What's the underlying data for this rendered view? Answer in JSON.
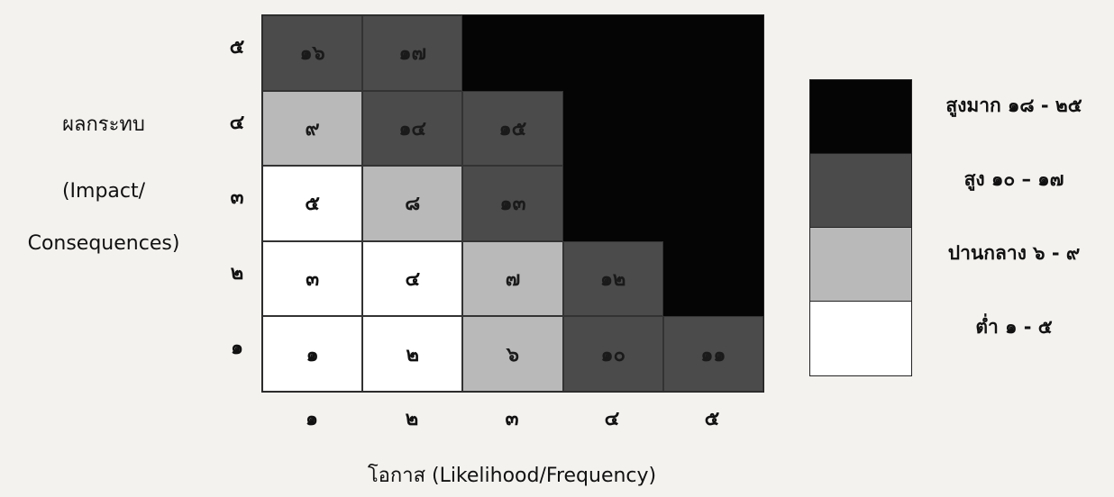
{
  "chart_data": {
    "type": "heatmap",
    "ylabel_lines": [
      "ผลกระทบ",
      "(Impact/",
      "Consequences)"
    ],
    "xlabel": "โอกาส (Likelihood/Frequency)",
    "x_ticks": [
      "๑",
      "๒",
      "๓",
      "๔",
      "๕"
    ],
    "y_ticks": [
      "๕",
      "๔",
      "๓",
      "๒",
      "๑"
    ],
    "rows": [
      [
        {
          "label": "๑๖",
          "level": "high"
        },
        {
          "label": "๑๗",
          "level": "high"
        },
        {
          "label": "",
          "level": "very-high"
        },
        {
          "label": "",
          "level": "very-high"
        },
        {
          "label": "",
          "level": "very-high"
        }
      ],
      [
        {
          "label": "๙",
          "level": "medium"
        },
        {
          "label": "๑๔",
          "level": "high"
        },
        {
          "label": "๑๕",
          "level": "high"
        },
        {
          "label": "",
          "level": "very-high"
        },
        {
          "label": "",
          "level": "very-high"
        }
      ],
      [
        {
          "label": "๕",
          "level": "low"
        },
        {
          "label": "๘",
          "level": "medium"
        },
        {
          "label": "๑๓",
          "level": "high"
        },
        {
          "label": "",
          "level": "very-high"
        },
        {
          "label": "",
          "level": "very-high"
        }
      ],
      [
        {
          "label": "๓",
          "level": "low"
        },
        {
          "label": "๔",
          "level": "low"
        },
        {
          "label": "๗",
          "level": "medium"
        },
        {
          "label": "๑๒",
          "level": "high"
        },
        {
          "label": "",
          "level": "very-high"
        }
      ],
      [
        {
          "label": "๑",
          "level": "low"
        },
        {
          "label": "๒",
          "level": "low"
        },
        {
          "label": "๖",
          "level": "medium"
        },
        {
          "label": "๑๐",
          "level": "high"
        },
        {
          "label": "๑๑",
          "level": "high"
        }
      ]
    ],
    "legend": [
      {
        "label": "สูงมาก ๑๘ - ๒๕",
        "level": "very-high",
        "color": "#050505"
      },
      {
        "label": "สูง ๑๐ – ๑๗",
        "level": "high",
        "color": "#4b4b4b"
      },
      {
        "label": "ปานกลาง ๖ - ๙",
        "level": "medium",
        "color": "#b9b9b9"
      },
      {
        "label": "ต่ำ ๑ - ๕",
        "level": "low",
        "color": "#ffffff"
      }
    ]
  }
}
